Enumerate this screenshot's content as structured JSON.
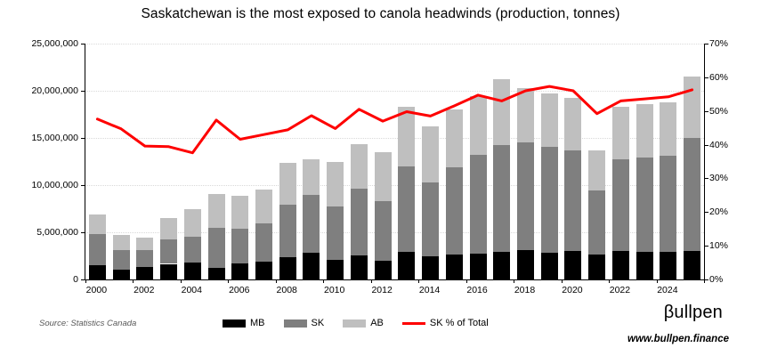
{
  "title": "Saskatchewan is the most exposed to canola headwinds (production, tonnes)",
  "chart_data": {
    "type": "bar",
    "subtype": "stacked-bars-with-line",
    "years": [
      2000,
      2001,
      2002,
      2003,
      2004,
      2005,
      2006,
      2007,
      2008,
      2009,
      2010,
      2011,
      2012,
      2013,
      2014,
      2015,
      2016,
      2017,
      2018,
      2019,
      2020,
      2021,
      2022,
      2023,
      2024,
      2025
    ],
    "series": [
      {
        "name": "MB",
        "color": "#000000",
        "values": [
          1500000,
          1050000,
          1350000,
          1650000,
          1750000,
          1200000,
          1700000,
          1850000,
          2400000,
          2800000,
          2100000,
          2550000,
          2000000,
          2900000,
          2450000,
          2600000,
          2700000,
          2900000,
          3100000,
          2800000,
          3000000,
          2650000,
          3000000,
          2900000,
          2900000,
          3000000
        ]
      },
      {
        "name": "SK",
        "color": "#7f7f7f",
        "values": [
          3300000,
          2100000,
          1750000,
          2550000,
          2800000,
          4300000,
          3700000,
          4050000,
          5550000,
          6200000,
          5600000,
          7100000,
          6300000,
          9100000,
          7800000,
          9300000,
          10500000,
          11300000,
          11400000,
          11300000,
          10700000,
          6750000,
          9700000,
          10050000,
          10200000,
          12000000
        ]
      },
      {
        "name": "AB",
        "color": "#bfbfbf",
        "values": [
          2100000,
          1600000,
          1300000,
          2300000,
          2900000,
          3600000,
          3450000,
          3600000,
          4450000,
          3750000,
          4800000,
          4650000,
          5200000,
          6300000,
          5950000,
          6100000,
          6200000,
          7000000,
          5800000,
          5600000,
          5500000,
          4300000,
          5600000,
          5650000,
          5700000,
          6500000
        ]
      }
    ],
    "line_series": {
      "name": "SK % of Total",
      "color": "#fe0000",
      "values": [
        47.6,
        44.7,
        39.6,
        39.4,
        37.6,
        47.3,
        41.6,
        43.0,
        44.4,
        48.6,
        44.8,
        50.5,
        47.0,
        49.8,
        48.5,
        51.5,
        54.7,
        53.0,
        56.0,
        57.3,
        56.0,
        49.2,
        53.0,
        53.6,
        54.2,
        56.3
      ]
    },
    "left_axis": {
      "min": 0,
      "max": 25000000,
      "tick_interval": 5000000,
      "tick_labels": [
        "0",
        "5,000,000",
        "10,000,000",
        "15,000,000",
        "20,000,000",
        "25,000,000"
      ]
    },
    "right_axis": {
      "min": 0,
      "max": 70,
      "tick_interval": 10,
      "tick_labels": [
        "0%",
        "10%",
        "20%",
        "30%",
        "40%",
        "50%",
        "60%",
        "70%"
      ]
    },
    "x_tick_labels": [
      "2000",
      "2002",
      "2004",
      "2006",
      "2008",
      "2010",
      "2012",
      "2014",
      "2016",
      "2018",
      "2020",
      "2022",
      "2024"
    ],
    "grid": "horizontal-dotted",
    "legend_position": "bottom"
  },
  "legend": {
    "mb_label": "MB",
    "sk_label": "SK",
    "ab_label": "AB",
    "line_label": "SK % of Total"
  },
  "footer": {
    "source": "Source: Statistics Canada",
    "brand": "βullpen",
    "website": "www.bullpen.finance"
  }
}
